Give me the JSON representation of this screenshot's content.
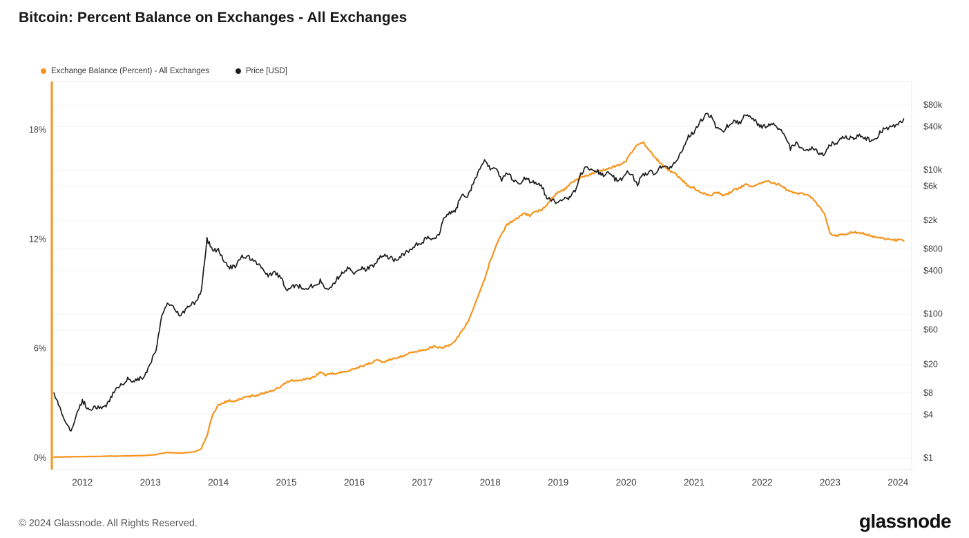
{
  "footer": {
    "copyright": "© 2024 Glassnode. All Rights Reserved.",
    "brand": "glassnode"
  },
  "chart_data": {
    "type": "line",
    "title": "Bitcoin: Percent Balance on Exchanges - All Exchanges",
    "legend_position": "top-left",
    "grid": "horizontal-faint",
    "x_axis": {
      "min": 2011.55,
      "max": 2024.2,
      "ticks": [
        2012,
        2013,
        2014,
        2015,
        2016,
        2017,
        2018,
        2019,
        2020,
        2021,
        2022,
        2023,
        2024
      ],
      "start": 2011.583,
      "step": 0.0833333,
      "interval": "monthly",
      "range_label": "Aug 2011 - Feb 2024"
    },
    "left_axis": {
      "label": "Exchange Balance (Percent)",
      "unit": "%",
      "scale": "linear",
      "min": 0,
      "max": 20.6,
      "ticks": [
        {
          "value": 0,
          "label": "0%"
        },
        {
          "value": 6,
          "label": "6%"
        },
        {
          "value": 12,
          "label": "12%"
        },
        {
          "value": 18,
          "label": "18%"
        }
      ]
    },
    "right_axis": {
      "label": "Price [USD]",
      "scale": "log",
      "min": 0.7,
      "max": 170000,
      "ticks": [
        {
          "value": 1,
          "label": "$1"
        },
        {
          "value": 4,
          "label": "$4"
        },
        {
          "value": 8,
          "label": "$8"
        },
        {
          "value": 20,
          "label": "$20"
        },
        {
          "value": 60,
          "label": "$60"
        },
        {
          "value": 100,
          "label": "$100"
        },
        {
          "value": 400,
          "label": "$400"
        },
        {
          "value": 800,
          "label": "$800"
        },
        {
          "value": 2000,
          "label": "$2k"
        },
        {
          "value": 6000,
          "label": "$6k"
        },
        {
          "value": 10000,
          "label": "$10k"
        },
        {
          "value": 40000,
          "label": "$40k"
        },
        {
          "value": 80000,
          "label": "$80k"
        }
      ]
    },
    "series": [
      {
        "name": "Exchange Balance (Percent) - All Exchanges",
        "axis": "left",
        "color": "#f7931a",
        "values": [
          0.05,
          0.05,
          0.06,
          0.06,
          0.07,
          0.07,
          0.08,
          0.08,
          0.09,
          0.09,
          0.1,
          0.1,
          0.11,
          0.11,
          0.12,
          0.12,
          0.13,
          0.15,
          0.18,
          0.25,
          0.3,
          0.28,
          0.27,
          0.28,
          0.3,
          0.35,
          0.5,
          1.2,
          2.4,
          2.9,
          3.05,
          3.15,
          3.1,
          3.25,
          3.35,
          3.4,
          3.45,
          3.55,
          3.65,
          3.75,
          3.9,
          4.15,
          4.25,
          4.2,
          4.3,
          4.35,
          4.45,
          4.7,
          4.55,
          4.6,
          4.65,
          4.7,
          4.8,
          4.9,
          5.0,
          5.1,
          5.2,
          5.4,
          5.25,
          5.35,
          5.45,
          5.55,
          5.65,
          5.75,
          5.85,
          5.9,
          6.0,
          6.1,
          6.05,
          6.1,
          6.2,
          6.5,
          7.0,
          7.4,
          8.2,
          9.0,
          9.8,
          10.8,
          11.6,
          12.3,
          12.8,
          13.0,
          13.2,
          13.4,
          13.3,
          13.5,
          13.6,
          13.9,
          14.3,
          14.6,
          14.7,
          15.0,
          15.2,
          15.4,
          15.5,
          15.6,
          15.7,
          15.8,
          15.9,
          16.0,
          16.1,
          16.3,
          16.8,
          17.2,
          17.3,
          16.9,
          16.5,
          16.2,
          15.9,
          15.7,
          15.5,
          15.2,
          14.9,
          14.8,
          14.6,
          14.5,
          14.4,
          14.6,
          14.4,
          14.5,
          14.7,
          14.8,
          15.0,
          14.9,
          15.0,
          15.1,
          15.2,
          15.1,
          15.0,
          14.8,
          14.6,
          14.5,
          14.5,
          14.4,
          14.2,
          13.8,
          13.4,
          12.3,
          12.2,
          12.25,
          12.3,
          12.4,
          12.35,
          12.3,
          12.2,
          12.1,
          12.05,
          12.0,
          11.95,
          11.95,
          11.9
        ]
      },
      {
        "name": "Price [USD]",
        "axis": "right",
        "color": "#1c1c1c",
        "values": [
          8,
          5,
          3.2,
          2.2,
          4.2,
          6.2,
          4.9,
          4.9,
          5.1,
          5.2,
          6.7,
          9.4,
          10.2,
          12.4,
          11.2,
          12.5,
          13.4,
          20,
          33,
          93,
          139,
          128,
          97,
          106,
          135,
          141,
          204,
          1100,
          750,
          800,
          550,
          450,
          445,
          620,
          640,
          580,
          500,
          390,
          340,
          375,
          320,
          220,
          250,
          245,
          235,
          230,
          262,
          285,
          230,
          236,
          312,
          375,
          430,
          370,
          438,
          415,
          450,
          530,
          670,
          625,
          575,
          610,
          700,
          745,
          960,
          970,
          1190,
          1080,
          1350,
          2300,
          2480,
          2875,
          4700,
          4340,
          6450,
          9900,
          14100,
          10200,
          10300,
          6930,
          9240,
          7500,
          6400,
          7780,
          7030,
          6600,
          6300,
          4020,
          3740,
          3460,
          3850,
          4100,
          5320,
          8560,
          10800,
          10100,
          9600,
          8300,
          9200,
          7550,
          7200,
          9350,
          8550,
          6440,
          8630,
          9450,
          9140,
          11350,
          11650,
          10780,
          13800,
          19700,
          29000,
          33100,
          45200,
          58800,
          57750,
          37300,
          35040,
          41600,
          47100,
          43800,
          61300,
          57000,
          46200,
          38480,
          43200,
          45540,
          37650,
          31800,
          19940,
          23300,
          20050,
          19430,
          20490,
          17170,
          16550,
          23140,
          23150,
          28480,
          29250,
          27220,
          30480,
          29230,
          25930,
          26970,
          34660,
          37720,
          42270,
          42580,
          51500
        ]
      }
    ]
  }
}
